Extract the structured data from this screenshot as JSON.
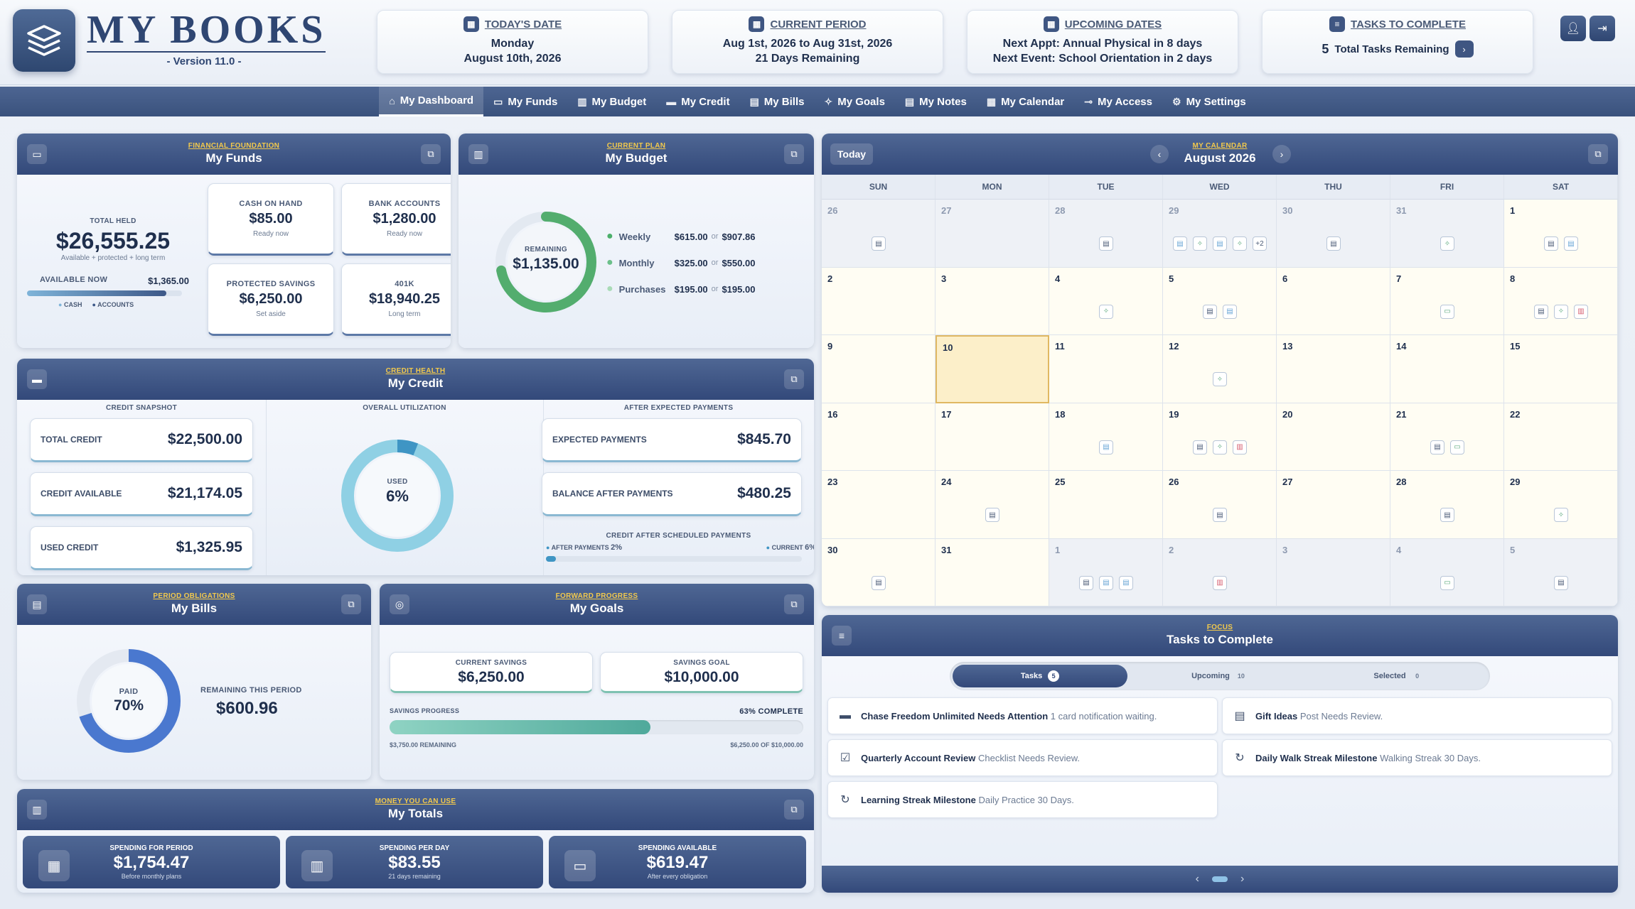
{
  "app": {
    "title": "MY BOOKS",
    "version": "- Version 11.0 -"
  },
  "header": {
    "today": {
      "title": "TODAY'S DATE",
      "line1": "Monday",
      "line2": "August 10th, 2026"
    },
    "period": {
      "title": "CURRENT PERIOD",
      "line1": "Aug 1st, 2026 to Aug 31st, 2026",
      "line2": "21 Days Remaining"
    },
    "upcoming": {
      "title": "UPCOMING DATES",
      "line1": "Next Appt: Annual Physical in 8 days",
      "line2": "Next Event: School Orientation in 2 days"
    },
    "tasks": {
      "title": "TASKS TO COMPLETE",
      "count": "5",
      "text": "Total Tasks Remaining"
    }
  },
  "nav": [
    {
      "label": "My Dashboard",
      "icon": "⌂"
    },
    {
      "label": "My Funds",
      "icon": "▭"
    },
    {
      "label": "My Budget",
      "icon": "▥"
    },
    {
      "label": "My Credit",
      "icon": "▬"
    },
    {
      "label": "My Bills",
      "icon": "▤"
    },
    {
      "label": "My Goals",
      "icon": "✧"
    },
    {
      "label": "My Notes",
      "icon": "▤"
    },
    {
      "label": "My Calendar",
      "icon": "▦"
    },
    {
      "label": "My Access",
      "icon": "⊸"
    },
    {
      "label": "My Settings",
      "icon": "⚙"
    }
  ],
  "funds": {
    "sub": "FINANCIAL FOUNDATION",
    "title": "My Funds",
    "total_label": "TOTAL HELD",
    "total": "$26,555.25",
    "total_note": "Available + protected + long term",
    "available_label": "AVAILABLE NOW",
    "available": "$1,365.00",
    "available_fraction": 0.9,
    "legend_cash": "CASH",
    "legend_accounts": "ACCOUNTS",
    "cards": [
      {
        "label": "CASH ON HAND",
        "value": "$85.00",
        "note": "Ready now"
      },
      {
        "label": "BANK ACCOUNTS",
        "value": "$1,280.00",
        "note": "Ready now"
      },
      {
        "label": "PROTECTED SAVINGS",
        "value": "$6,250.00",
        "note": "Set aside"
      },
      {
        "label": "401K",
        "value": "$18,940.25",
        "note": "Long term"
      }
    ]
  },
  "budget": {
    "sub": "CURRENT PLAN",
    "title": "My Budget",
    "remaining_label": "REMAINING",
    "remaining": "$1,135.00",
    "rows": [
      {
        "label": "Weekly",
        "used": "$615.00",
        "of": "or",
        "total": "$907.86",
        "color": "#4caf6a"
      },
      {
        "label": "Monthly",
        "used": "$325.00",
        "of": "or",
        "total": "$550.00",
        "color": "#6cc08a"
      },
      {
        "label": "Purchases",
        "used": "$195.00",
        "of": "or",
        "total": "$195.00",
        "color": "#a9dbb7"
      }
    ]
  },
  "credit": {
    "sub": "CREDIT HEALTH",
    "title": "My Credit",
    "snapshot_label": "CREDIT SNAPSHOT",
    "rows": [
      {
        "label": "TOTAL CREDIT",
        "value": "$22,500.00"
      },
      {
        "label": "CREDIT AVAILABLE",
        "value": "$21,174.05"
      },
      {
        "label": "USED CREDIT",
        "value": "$1,325.95"
      }
    ],
    "util_label": "OVERALL UTILIZATION",
    "used_label": "USED",
    "used": "6%",
    "used_fraction": 0.06,
    "after_label": "AFTER EXPECTED PAYMENTS",
    "after_rows": [
      {
        "label": "EXPECTED PAYMENTS",
        "value": "$845.70"
      },
      {
        "label": "BALANCE AFTER PAYMENTS",
        "value": "$480.25"
      }
    ],
    "sched_label": "CREDIT AFTER SCHEDULED PAYMENTS",
    "after_pay_label": "AFTER PAYMENTS",
    "after_pay": "2%",
    "current_label": "CURRENT",
    "current": "6%"
  },
  "bills": {
    "sub": "PERIOD OBLIGATIONS",
    "title": "My Bills",
    "paid_label": "PAID",
    "paid": "70%",
    "paid_fraction": 0.7,
    "remaining_label": "REMAINING THIS PERIOD",
    "remaining": "$600.96"
  },
  "goals": {
    "sub": "FORWARD PROGRESS",
    "title": "My Goals",
    "current_label": "CURRENT SAVINGS",
    "current": "$6,250.00",
    "goal_label": "SAVINGS GOAL",
    "goal": "$10,000.00",
    "progress_label": "SAVINGS PROGRESS",
    "progress": "63% COMPLETE",
    "progress_fraction": 0.63,
    "remaining": "$3,750.00 REMAINING",
    "of": "$6,250.00 OF $10,000.00"
  },
  "totals": {
    "sub": "MONEY YOU CAN USE",
    "title": "My Totals",
    "cards": [
      {
        "label": "SPENDING FOR PERIOD",
        "value": "$1,754.47",
        "note": "Before monthly plans",
        "icon": "▦"
      },
      {
        "label": "SPENDING PER DAY",
        "value": "$83.55",
        "note": "21 days remaining",
        "icon": "▥"
      },
      {
        "label": "SPENDING AVAILABLE",
        "value": "$619.47",
        "note": "After every obligation",
        "icon": "▭"
      }
    ]
  },
  "calendar": {
    "sub": "MY CALENDAR",
    "title": "August 2026",
    "today_btn": "Today",
    "days": [
      "SUN",
      "MON",
      "TUE",
      "WED",
      "THU",
      "FRI",
      "SAT"
    ],
    "cells": [
      {
        "d": "26",
        "o": true,
        "ev": [
          "▤"
        ]
      },
      {
        "d": "27",
        "o": true,
        "ev": []
      },
      {
        "d": "28",
        "o": true,
        "ev": [
          "▤"
        ]
      },
      {
        "d": "29",
        "o": true,
        "ev": [
          "b▤",
          "g✧",
          "b▤",
          "g✧",
          "+2"
        ]
      },
      {
        "d": "30",
        "o": true,
        "ev": [
          "▤"
        ]
      },
      {
        "d": "31",
        "o": true,
        "ev": [
          "g✧"
        ]
      },
      {
        "d": "1",
        "o": false,
        "ev": [
          "▤",
          "b▤"
        ]
      },
      {
        "d": "2",
        "o": false,
        "ev": []
      },
      {
        "d": "3",
        "o": false,
        "ev": []
      },
      {
        "d": "4",
        "o": false,
        "ev": [
          "g✧"
        ]
      },
      {
        "d": "5",
        "o": false,
        "ev": [
          "▤",
          "b▤"
        ]
      },
      {
        "d": "6",
        "o": false,
        "ev": []
      },
      {
        "d": "7",
        "o": false,
        "ev": [
          "g▭"
        ]
      },
      {
        "d": "8",
        "o": false,
        "ev": [
          "▤",
          "g✧",
          "r▥"
        ]
      },
      {
        "d": "9",
        "o": false,
        "ev": []
      },
      {
        "d": "10",
        "o": false,
        "ev": [],
        "today": true
      },
      {
        "d": "11",
        "o": false,
        "ev": []
      },
      {
        "d": "12",
        "o": false,
        "ev": [
          "g✧"
        ]
      },
      {
        "d": "13",
        "o": false,
        "ev": []
      },
      {
        "d": "14",
        "o": false,
        "ev": []
      },
      {
        "d": "15",
        "o": false,
        "ev": []
      },
      {
        "d": "16",
        "o": false,
        "ev": []
      },
      {
        "d": "17",
        "o": false,
        "ev": []
      },
      {
        "d": "18",
        "o": false,
        "ev": [
          "b▤"
        ]
      },
      {
        "d": "19",
        "o": false,
        "ev": [
          "▤",
          "g✧",
          "r▥"
        ]
      },
      {
        "d": "20",
        "o": false,
        "ev": []
      },
      {
        "d": "21",
        "o": false,
        "ev": [
          "▤",
          "g▭"
        ]
      },
      {
        "d": "22",
        "o": false,
        "ev": []
      },
      {
        "d": "23",
        "o": false,
        "ev": []
      },
      {
        "d": "24",
        "o": false,
        "ev": [
          "▤"
        ]
      },
      {
        "d": "25",
        "o": false,
        "ev": []
      },
      {
        "d": "26",
        "o": false,
        "ev": [
          "▤"
        ]
      },
      {
        "d": "27",
        "o": false,
        "ev": []
      },
      {
        "d": "28",
        "o": false,
        "ev": [
          "▤"
        ]
      },
      {
        "d": "29",
        "o": false,
        "ev": [
          "g✧"
        ]
      },
      {
        "d": "30",
        "o": false,
        "ev": [
          "▤"
        ]
      },
      {
        "d": "31",
        "o": false,
        "ev": []
      },
      {
        "d": "1",
        "o": true,
        "ev": [
          "▤",
          "b▤",
          "b▤"
        ]
      },
      {
        "d": "2",
        "o": true,
        "ev": [
          "r▥"
        ]
      },
      {
        "d": "3",
        "o": true,
        "ev": []
      },
      {
        "d": "4",
        "o": true,
        "ev": [
          "g▭"
        ]
      },
      {
        "d": "5",
        "o": true,
        "ev": [
          "▤"
        ]
      }
    ]
  },
  "tasks_panel": {
    "sub": "FOCUS",
    "title": "Tasks to Complete",
    "tabs": [
      {
        "label": "Tasks",
        "count": "5"
      },
      {
        "label": "Upcoming",
        "count": "10"
      },
      {
        "label": "Selected",
        "count": "0"
      }
    ],
    "items": [
      {
        "icon": "▬",
        "title": "Chase Freedom Unlimited Needs Attention",
        "desc": "1 card notification waiting."
      },
      {
        "icon": "▤",
        "title": "Gift Ideas",
        "desc": "Post Needs Review."
      },
      {
        "icon": "☑",
        "title": "Quarterly Account Review",
        "desc": "Checklist Needs Review."
      },
      {
        "icon": "↻",
        "title": "Daily Walk Streak Milestone",
        "desc": "Walking Streak 30 Days."
      },
      {
        "icon": "↻",
        "title": "Learning Streak Milestone",
        "desc": "Daily Practice 30 Days."
      }
    ]
  }
}
